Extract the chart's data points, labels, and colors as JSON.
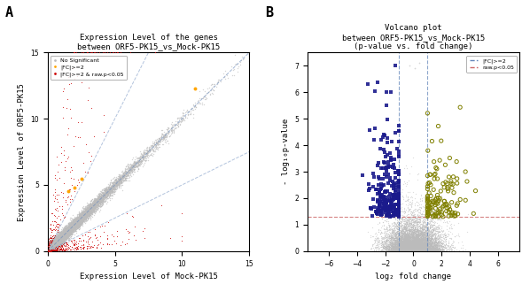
{
  "panel_A": {
    "title_line1": "Expression Level of the genes",
    "title_line2": "between ORF5-PK15_vs_Mock-PK15",
    "xlabel": "Expression Level of Mock-PK15",
    "ylabel": "Expression Level of ORF5-PK15",
    "xlim": [
      0,
      15
    ],
    "ylim": [
      0,
      15
    ],
    "xticks": [
      0,
      5,
      10,
      15
    ],
    "yticks": [
      0,
      5,
      10,
      15
    ],
    "label_A": "A",
    "legend_no_sig": "No Significant",
    "legend_fc2": "|FC|>=2",
    "legend_fc2_p": "|FC|>=2 & raw.p<0.05",
    "color_no_sig": "#bbbbbb",
    "color_fc2": "#FFA500",
    "color_fc2_p": "#CC0000",
    "color_dashed": "#6688bb",
    "n_gray": 9000,
    "n_red": 500,
    "seed_gray": 10,
    "seed_red": 20,
    "seed_orange": 30
  },
  "panel_B": {
    "title_line1": "Volcano plot",
    "title_line2": "between ORF5-PK15_vs_Mock-PK15",
    "title_line3": "(p-value vs. fold change)",
    "xlabel": "log₂ fold change",
    "ylabel": "- log₁₀p-value",
    "xlim": [
      -7.5,
      7.5
    ],
    "ylim": [
      0,
      7.5
    ],
    "xticks": [
      -6,
      -4,
      -2,
      0,
      2,
      4,
      6
    ],
    "yticks": [
      0,
      1,
      2,
      3,
      4,
      5,
      6,
      7
    ],
    "label_B": "B",
    "fc_threshold": 1,
    "pval_threshold": 1.3,
    "legend_fc2": "|FC|>=2",
    "legend_pval": "raw.p<0.05",
    "color_gray": "#bbbbbb",
    "color_blue": "#1a1a8c",
    "color_olive": "#808000",
    "color_dashed_blue": "#6688bb",
    "color_dashed_red": "#cc6666",
    "n_gray": 9000,
    "n_blue": 250,
    "n_olive": 130,
    "seed_gray": 100,
    "seed_blue": 200,
    "seed_olive": 300
  }
}
